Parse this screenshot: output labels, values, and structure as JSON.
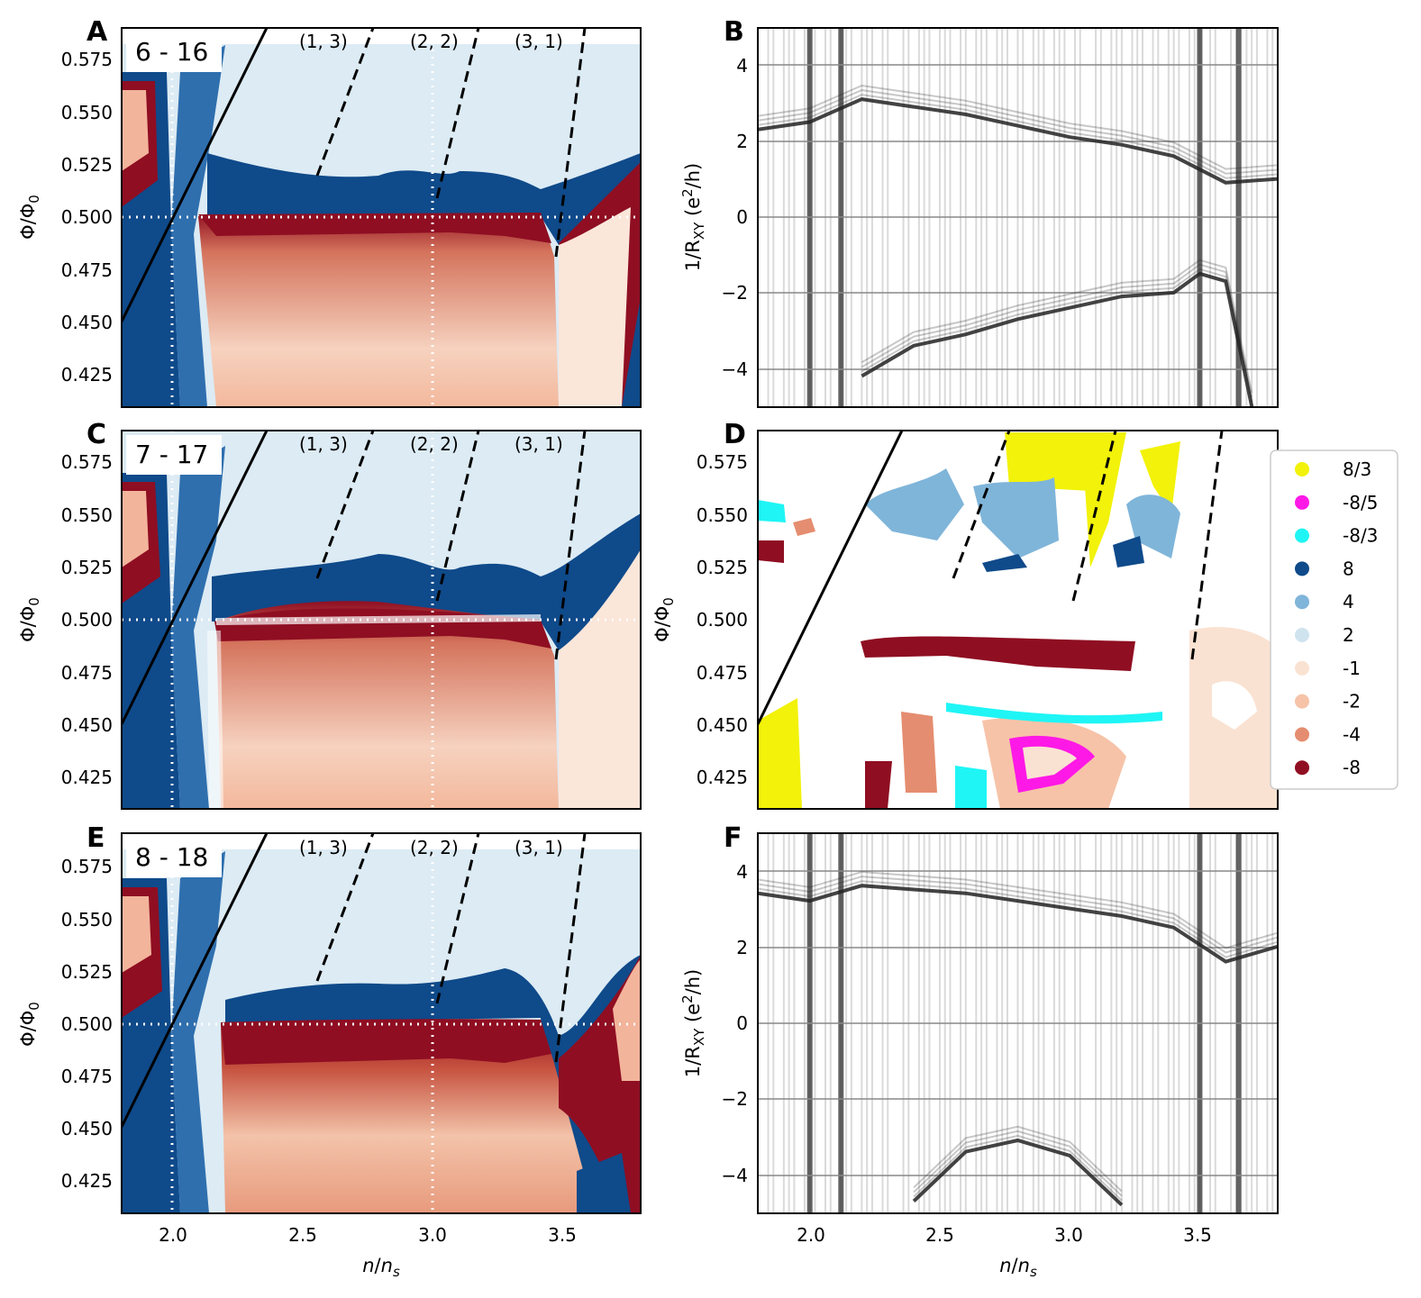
{
  "chart_data": [
    {
      "panel": "A",
      "type": "heatmap",
      "pair_label": "6 - 16",
      "xlabel": "n/n_s",
      "ylabel": "Φ/Φ_0",
      "xlim": [
        1.8,
        3.8
      ],
      "ylim": [
        0.41,
        0.59
      ],
      "xticks": [
        "2.0",
        "2.5",
        "3.0",
        "3.5"
      ],
      "yticks": [
        "0.425",
        "0.450",
        "0.475",
        "0.500",
        "0.525",
        "0.550",
        "0.575"
      ],
      "annotations": [
        "(1, 3)",
        "(2, 2)",
        "(3, 1)"
      ],
      "guide_lines": {
        "solid": [
          [
            1.8,
            0.45
          ],
          [
            2.36,
            0.59
          ]
        ],
        "dashed": [
          [
            [
              2.56,
              0.52
            ],
            [
              2.77,
              0.59
            ]
          ],
          [
            [
              3.02,
              0.51
            ],
            [
              3.18,
              0.59
            ]
          ],
          [
            [
              3.48,
              0.48
            ],
            [
              3.59,
              0.59
            ]
          ]
        ]
      }
    },
    {
      "panel": "B",
      "type": "line",
      "ylabel": "1/R_XY (e²/h)",
      "xlim": [
        1.8,
        3.8
      ],
      "ylim": [
        -5,
        5
      ],
      "xticks": [
        "2.0",
        "2.5",
        "3.0",
        "3.5"
      ],
      "yticks": [
        "4",
        "2",
        "0",
        "−2",
        "−4"
      ],
      "series": [
        {
          "name": "upper branch",
          "x": [
            1.8,
            2.0,
            2.2,
            2.4,
            2.6,
            2.8,
            3.0,
            3.2,
            3.4,
            3.6,
            3.8
          ],
          "y": [
            2.5,
            2.7,
            3.3,
            3.1,
            2.9,
            2.6,
            2.3,
            2.1,
            1.8,
            1.1,
            1.2
          ]
        },
        {
          "name": "lower branch",
          "x": [
            2.2,
            2.4,
            2.6,
            2.8,
            3.0,
            3.2,
            3.4,
            3.5,
            3.6,
            3.7
          ],
          "y": [
            -4.0,
            -3.2,
            -2.9,
            -2.5,
            -2.2,
            -1.9,
            -1.8,
            -1.3,
            -1.5,
            -4.8
          ]
        }
      ]
    },
    {
      "panel": "C",
      "type": "heatmap",
      "pair_label": "7 - 17",
      "xlim": [
        1.8,
        3.8
      ],
      "ylim": [
        0.41,
        0.59
      ],
      "xticks": [
        "2.0",
        "2.5",
        "3.0",
        "3.5"
      ],
      "yticks": [
        "0.425",
        "0.450",
        "0.475",
        "0.500",
        "0.525",
        "0.550",
        "0.575"
      ],
      "annotations": [
        "(1, 3)",
        "(2, 2)",
        "(3, 1)"
      ]
    },
    {
      "panel": "D",
      "type": "heatmap",
      "xlim": [
        1.8,
        3.8
      ],
      "ylim": [
        0.41,
        0.59
      ],
      "yticks": [
        "0.425",
        "0.450",
        "0.475",
        "0.500",
        "0.525",
        "0.550",
        "0.575"
      ],
      "legend": [
        {
          "label": "8/3",
          "color": "#f2f20a"
        },
        {
          "label": "-8/5",
          "color": "#ff19e6"
        },
        {
          "label": "-8/3",
          "color": "#1ff5f5"
        },
        {
          "label": "8",
          "color": "#0f4a8a"
        },
        {
          "label": "4",
          "color": "#7fb5d9"
        },
        {
          "label": "2",
          "color": "#cfe3ef"
        },
        {
          "label": "-1",
          "color": "#fae2d2"
        },
        {
          "label": "-2",
          "color": "#f6c3a8"
        },
        {
          "label": "-4",
          "color": "#e58d70"
        },
        {
          "label": "-8",
          "color": "#8f0e22"
        }
      ]
    },
    {
      "panel": "E",
      "type": "heatmap",
      "pair_label": "8 - 18",
      "xlabel": "n/n_s",
      "ylabel": "Φ/Φ_0",
      "xlim": [
        1.8,
        3.8
      ],
      "ylim": [
        0.41,
        0.59
      ],
      "xticks": [
        "2.0",
        "2.5",
        "3.0",
        "3.5"
      ],
      "yticks": [
        "0.425",
        "0.450",
        "0.475",
        "0.500",
        "0.525",
        "0.550",
        "0.575"
      ],
      "annotations": [
        "(1, 3)",
        "(2, 2)",
        "(3, 1)"
      ]
    },
    {
      "panel": "F",
      "type": "line",
      "xlabel": "n/n_s",
      "ylabel": "1/R_XY (e²/h)",
      "xlim": [
        1.8,
        3.8
      ],
      "ylim": [
        -5,
        5
      ],
      "xticks": [
        "2.0",
        "2.5",
        "3.0",
        "3.5"
      ],
      "yticks": [
        "4",
        "2",
        "0",
        "−2",
        "−4"
      ],
      "series": [
        {
          "name": "upper branch",
          "x": [
            1.8,
            2.0,
            2.2,
            2.4,
            2.6,
            2.8,
            3.0,
            3.2,
            3.4,
            3.6,
            3.8
          ],
          "y": [
            3.6,
            3.4,
            3.8,
            3.7,
            3.6,
            3.4,
            3.2,
            3.0,
            2.7,
            1.8,
            2.2
          ]
        },
        {
          "name": "lower branch",
          "x": [
            2.4,
            2.6,
            2.8,
            3.0,
            3.2
          ],
          "y": [
            -4.5,
            -3.2,
            -2.9,
            -3.3,
            -4.6
          ]
        }
      ]
    }
  ],
  "labels": {
    "A": "A",
    "B": "B",
    "C": "C",
    "D": "D",
    "E": "E",
    "F": "F",
    "pairA": "6 - 16",
    "pairC": "7 - 17",
    "pairE": "8 - 18",
    "t13": "(1, 3)",
    "t22": "(2, 2)",
    "t31": "(3, 1)",
    "xlabel_n": "n",
    "xlabel_ns": "n",
    "xlabel_s": "s",
    "ylabel_phi": "Φ/Φ",
    "ylabel_phi_sub": "0",
    "ylabel_r1": "1/R",
    "ylabel_r_sub": "XY",
    "ylabel_r2": " (e",
    "ylabel_r_sup": "2",
    "ylabel_r3": "/h)"
  }
}
